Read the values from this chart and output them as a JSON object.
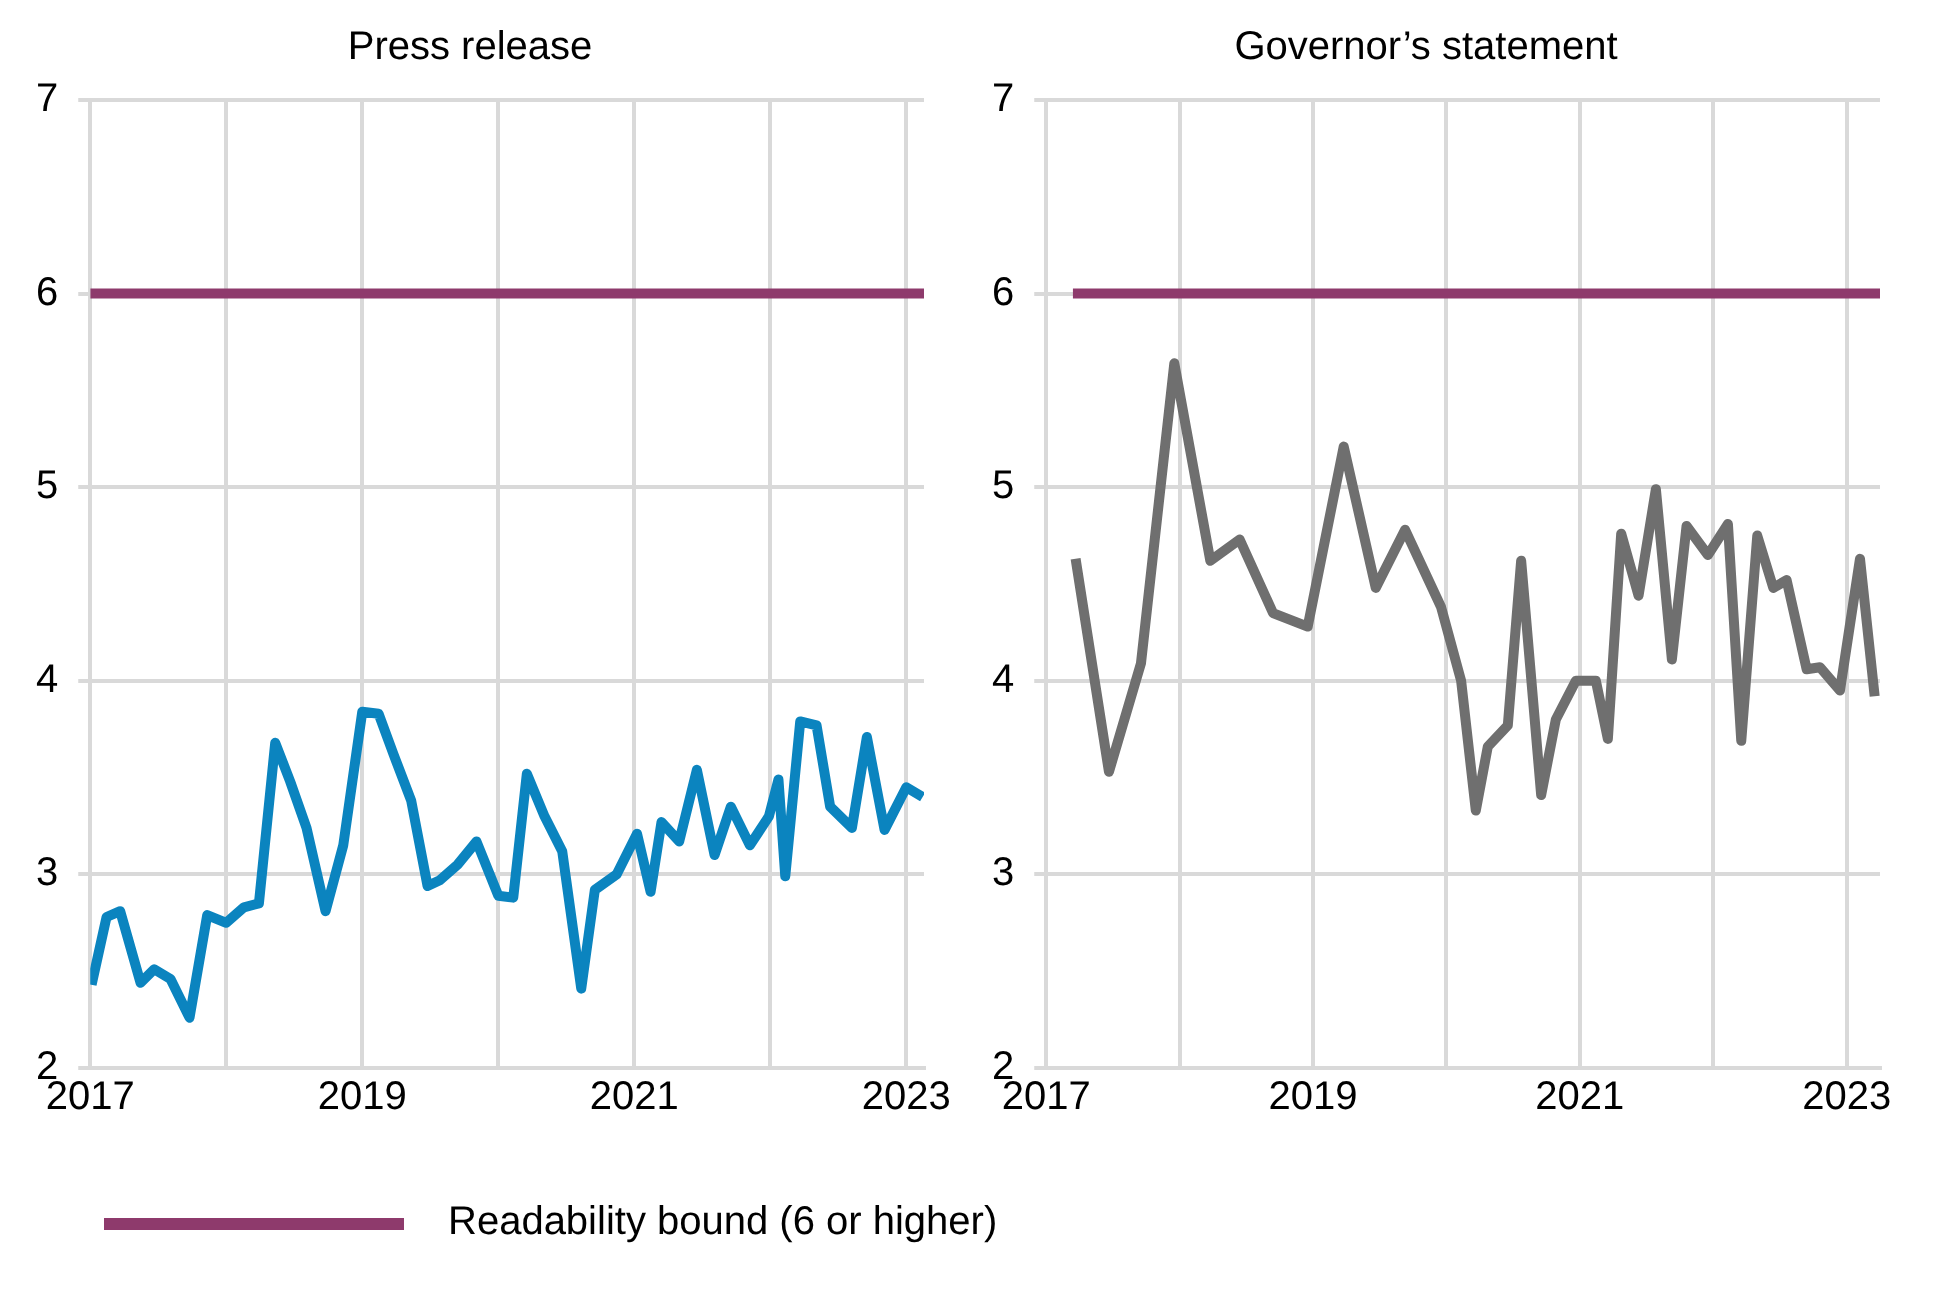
{
  "chart_data": [
    {
      "type": "line",
      "title": "Press release",
      "xlim": [
        2017,
        2023.13
      ],
      "xticks": [
        2017,
        {
          "value": 2018,
          "label": null
        },
        2019,
        {
          "value": 2020,
          "label": null
        },
        2021,
        {
          "value": 2022,
          "label": null
        },
        2023
      ],
      "ylim": [
        2,
        7
      ],
      "yticks": [
        2,
        3,
        4,
        5,
        6,
        7
      ],
      "grid": true,
      "legend": "bottom",
      "marker": "none",
      "line_style": "solid",
      "series": [
        {
          "name": "Readability bound (6 or higher)",
          "color": "#8e3a6c",
          "x": [
            2017,
            2023.13
          ],
          "values": [
            6,
            6
          ]
        },
        {
          "color": "#0b84bf",
          "x": [
            2017.01,
            2017.12,
            2017.22,
            2017.37,
            2017.47,
            2017.59,
            2017.73,
            2017.86,
            2018.0,
            2018.13,
            2018.24,
            2018.36,
            2018.47,
            2018.59,
            2018.73,
            2018.86,
            2019.0,
            2019.12,
            2019.23,
            2019.36,
            2019.48,
            2019.57,
            2019.7,
            2019.84,
            2020.0,
            2020.11,
            2020.21,
            2020.34,
            2020.47,
            2020.61,
            2020.71,
            2020.87,
            2021.02,
            2021.12,
            2021.2,
            2021.33,
            2021.46,
            2021.59,
            2021.71,
            2021.85,
            2021.99,
            2022.06,
            2022.11,
            2022.22,
            2022.34,
            2022.44,
            2022.6,
            2022.71,
            2022.84,
            2023.0,
            2023.12
          ],
          "values": [
            2.43,
            2.78,
            2.81,
            2.44,
            2.51,
            2.46,
            2.26,
            2.79,
            2.75,
            2.83,
            2.85,
            3.68,
            3.48,
            3.24,
            2.81,
            3.15,
            3.84,
            3.83,
            3.62,
            3.38,
            2.94,
            2.97,
            3.05,
            3.17,
            2.89,
            2.88,
            3.52,
            3.3,
            3.12,
            2.41,
            2.92,
            3.0,
            3.21,
            2.91,
            3.27,
            3.17,
            3.54,
            3.1,
            3.35,
            3.15,
            3.3,
            3.49,
            2.99,
            3.79,
            3.77,
            3.35,
            3.24,
            3.71,
            3.23,
            3.45,
            3.4
          ]
        }
      ]
    },
    {
      "type": "line",
      "title": "Governor’s statement",
      "xlim": [
        2017,
        2023.25
      ],
      "xticks": [
        2017,
        {
          "value": 2018,
          "label": null
        },
        2019,
        {
          "value": 2020,
          "label": null
        },
        2021,
        {
          "value": 2022,
          "label": null
        },
        2023
      ],
      "ylim": [
        2,
        7
      ],
      "yticks": [
        2,
        3,
        4,
        5,
        6,
        7
      ],
      "grid": true,
      "marker": "none",
      "line_style": "solid",
      "series": [
        {
          "color": "#8e3a6c",
          "x": [
            2017.2,
            2023.25
          ],
          "values": [
            6,
            6
          ]
        },
        {
          "color": "#6f6f6f",
          "x": [
            2017.22,
            2017.47,
            2017.71,
            2017.96,
            2018.23,
            2018.45,
            2018.7,
            2018.96,
            2019.23,
            2019.47,
            2019.69,
            2019.96,
            2020.11,
            2020.22,
            2020.31,
            2020.46,
            2020.56,
            2020.71,
            2020.82,
            2020.97,
            2021.12,
            2021.21,
            2021.31,
            2021.44,
            2021.57,
            2021.69,
            2021.8,
            2021.96,
            2022.11,
            2022.21,
            2022.33,
            2022.45,
            2022.55,
            2022.7,
            2022.8,
            2022.95,
            2023.1,
            2023.21
          ],
          "values": [
            4.63,
            3.53,
            4.09,
            5.64,
            4.62,
            4.73,
            4.35,
            4.28,
            5.21,
            4.48,
            4.78,
            4.38,
            4.0,
            3.33,
            3.66,
            3.77,
            4.62,
            3.41,
            3.8,
            4.0,
            4.0,
            3.7,
            4.76,
            4.44,
            4.99,
            4.11,
            4.8,
            4.65,
            4.81,
            3.69,
            4.75,
            4.48,
            4.52,
            4.06,
            4.07,
            3.95,
            4.63,
            3.92
          ]
        }
      ]
    }
  ]
}
